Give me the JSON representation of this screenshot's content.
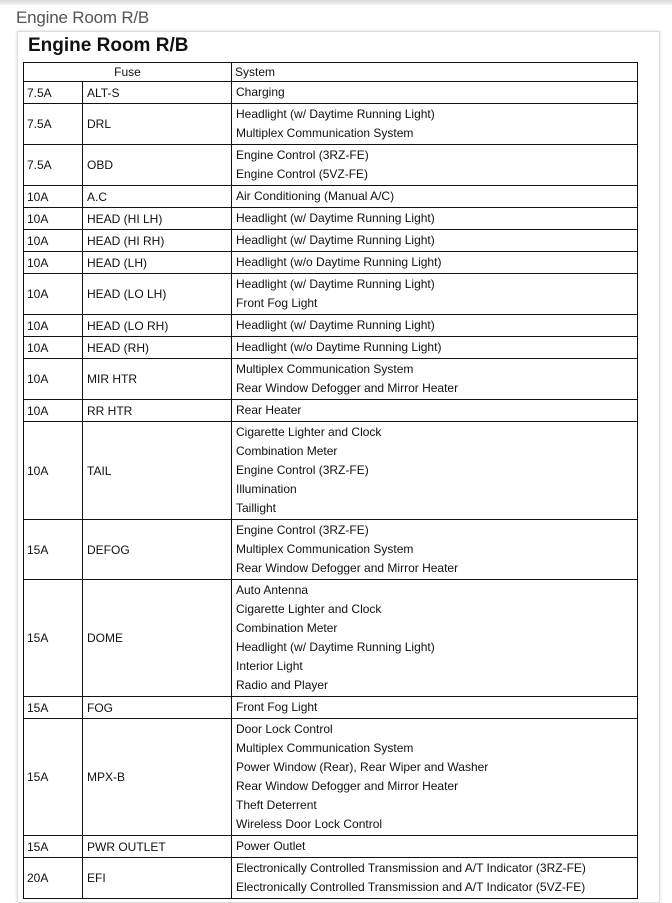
{
  "page_title": "Engine Room R/B",
  "document": {
    "title": "Engine Room R/B",
    "columns": {
      "fuse": "Fuse",
      "system": "System"
    },
    "rows": [
      {
        "amp": "7.5A",
        "name": "ALT-S",
        "systems": [
          "Charging"
        ]
      },
      {
        "amp": "7.5A",
        "name": "DRL",
        "systems": [
          "Headlight (w/ Daytime Running Light)",
          "Multiplex Communication System"
        ]
      },
      {
        "amp": "7.5A",
        "name": "OBD",
        "systems": [
          "Engine Control (3RZ-FE)",
          "Engine Control (5VZ-FE)"
        ]
      },
      {
        "amp": "10A",
        "name": "A.C",
        "systems": [
          "Air Conditioning (Manual A/C)"
        ]
      },
      {
        "amp": "10A",
        "name": "HEAD (HI LH)",
        "systems": [
          "Headlight (w/ Daytime Running Light)"
        ]
      },
      {
        "amp": "10A",
        "name": "HEAD (HI RH)",
        "systems": [
          "Headlight (w/ Daytime Running Light)"
        ]
      },
      {
        "amp": "10A",
        "name": "HEAD (LH)",
        "systems": [
          "Headlight (w/o Daytime Running Light)"
        ]
      },
      {
        "amp": "10A",
        "name": "HEAD (LO LH)",
        "systems": [
          "Headlight (w/ Daytime Running Light)",
          "Front Fog Light"
        ]
      },
      {
        "amp": "10A",
        "name": "HEAD (LO RH)",
        "systems": [
          "Headlight (w/ Daytime Running Light)"
        ]
      },
      {
        "amp": "10A",
        "name": "HEAD (RH)",
        "systems": [
          "Headlight (w/o Daytime Running Light)"
        ]
      },
      {
        "amp": "10A",
        "name": "MIR HTR",
        "systems": [
          "Multiplex Communication System",
          "Rear Window Defogger and Mirror Heater"
        ]
      },
      {
        "amp": "10A",
        "name": "RR HTR",
        "systems": [
          "Rear Heater"
        ]
      },
      {
        "amp": "10A",
        "name": "TAIL",
        "systems": [
          "Cigarette Lighter and Clock",
          "Combination Meter",
          "Engine Control (3RZ-FE)",
          "Illumination",
          "Taillight"
        ]
      },
      {
        "amp": "15A",
        "name": "DEFOG",
        "systems": [
          "Engine Control (3RZ-FE)",
          "Multiplex Communication System",
          "Rear Window Defogger and Mirror Heater"
        ]
      },
      {
        "amp": "15A",
        "name": "DOME",
        "systems": [
          "Auto Antenna",
          "Cigarette Lighter and Clock",
          "Combination Meter",
          "Headlight (w/ Daytime Running Light)",
          "Interior Light",
          "Radio and Player"
        ]
      },
      {
        "amp": "15A",
        "name": "FOG",
        "systems": [
          "Front Fog Light"
        ]
      },
      {
        "amp": "15A",
        "name": "MPX-B",
        "systems": [
          "Door Lock Control",
          "Multiplex Communication System",
          "Power Window (Rear), Rear Wiper and Washer",
          "Rear Window Defogger and Mirror Heater",
          "Theft Deterrent",
          "Wireless Door Lock Control"
        ]
      },
      {
        "amp": "15A",
        "name": "PWR OUTLET",
        "systems": [
          "Power Outlet"
        ]
      },
      {
        "amp": "20A",
        "name": "EFI",
        "systems": [
          "Electronically Controlled Transmission and A/T Indicator (3RZ-FE)",
          "Electronically Controlled Transmission and A/T Indicator (5VZ-FE)"
        ]
      }
    ]
  }
}
